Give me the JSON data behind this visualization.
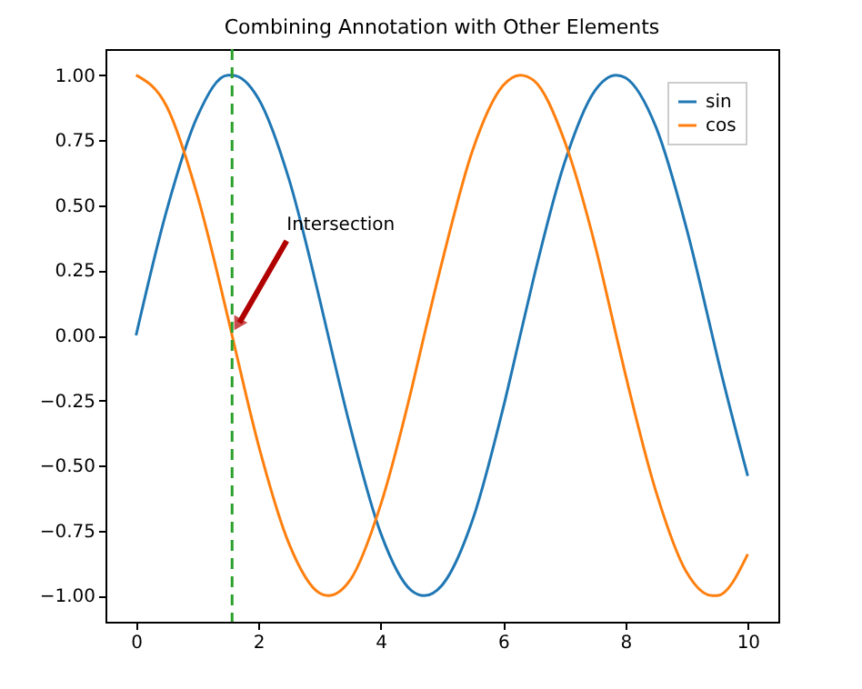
{
  "chart_data": {
    "type": "line",
    "title": "Combining Annotation with Other Elements",
    "x": [
      0,
      0.5,
      1,
      1.5,
      1.57,
      2,
      2.5,
      3,
      3.14,
      3.5,
      4,
      4.5,
      4.71,
      5,
      5.5,
      6,
      6.28,
      6.5,
      7,
      7.5,
      7.85,
      8,
      8.5,
      9,
      9.42,
      9.5,
      10
    ],
    "series": [
      {
        "name": "sin",
        "color": "#1f77b4",
        "values": [
          0,
          0.48,
          0.84,
          1.0,
          1.0,
          0.91,
          0.6,
          0.14,
          0.0,
          -0.35,
          -0.76,
          -0.98,
          -1.0,
          -0.96,
          -0.71,
          -0.28,
          0.0,
          0.22,
          0.66,
          0.94,
          1.0,
          0.99,
          0.8,
          0.41,
          0.0,
          -0.08,
          -0.54
        ]
      },
      {
        "name": "cos",
        "color": "#ff7f0e",
        "values": [
          1.0,
          0.88,
          0.54,
          0.07,
          0.0,
          -0.42,
          -0.8,
          -0.99,
          -1.0,
          -0.94,
          -0.65,
          -0.21,
          0.0,
          0.28,
          0.71,
          0.96,
          1.0,
          0.98,
          0.75,
          0.35,
          0.0,
          -0.15,
          -0.6,
          -0.91,
          -1.0,
          -1.0,
          -0.84
        ]
      }
    ],
    "xlim": [
      -0.5,
      10.5
    ],
    "xticks": [
      0,
      2,
      4,
      6,
      8,
      10
    ],
    "ylim": [
      -1.1,
      1.1
    ],
    "yticks": [
      {
        "value": -1,
        "label": "−1.00"
      },
      {
        "value": -0.75,
        "label": "−0.75"
      },
      {
        "value": -0.5,
        "label": "−0.50"
      },
      {
        "value": -0.25,
        "label": "−0.25"
      },
      {
        "value": 0,
        "label": "0.00"
      },
      {
        "value": 0.25,
        "label": "0.25"
      },
      {
        "value": 0.5,
        "label": "0.50"
      },
      {
        "value": 0.75,
        "label": "0.75"
      },
      {
        "value": 1,
        "label": "1.00"
      }
    ],
    "ref_lines": [
      {
        "axis": "x",
        "value": 1.57,
        "color": "#2ca02c",
        "line_style": "dashed"
      }
    ],
    "annotations": [
      {
        "text": "Intersection",
        "x": 1.57,
        "y": 0
      }
    ],
    "legend": "top right",
    "grid": false,
    "marker": "none",
    "line_style": "solid"
  }
}
